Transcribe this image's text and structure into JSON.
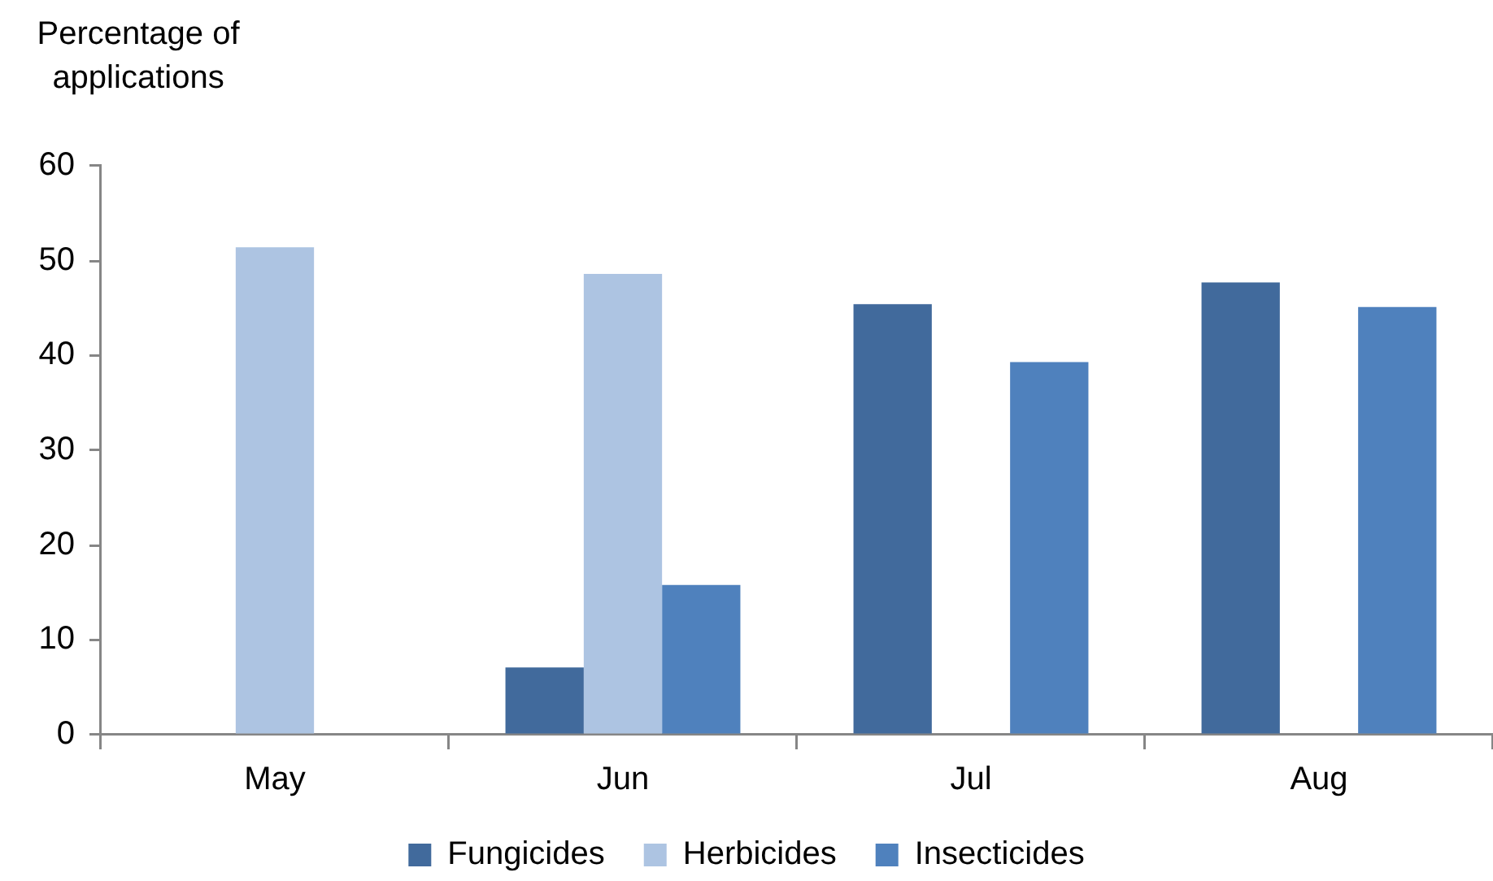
{
  "chart_data": {
    "type": "bar",
    "ylabel": "Percentage of applications",
    "categories": [
      "May",
      "Jun",
      "Jul",
      "Aug"
    ],
    "series": [
      {
        "name": "Fungicides",
        "color": "#416a9c",
        "values": [
          null,
          7.1,
          45.4,
          47.7
        ]
      },
      {
        "name": "Herbicides",
        "color": "#adc4e2",
        "values": [
          51.4,
          48.6,
          null,
          null
        ]
      },
      {
        "name": "Insecticides",
        "color": "#4f81bd",
        "values": [
          null,
          15.8,
          39.3,
          45.1
        ]
      }
    ],
    "ylim": [
      0,
      60
    ],
    "yticks": [
      0,
      10,
      20,
      30,
      40,
      50,
      60
    ],
    "grid": false,
    "legend": "bottom"
  }
}
